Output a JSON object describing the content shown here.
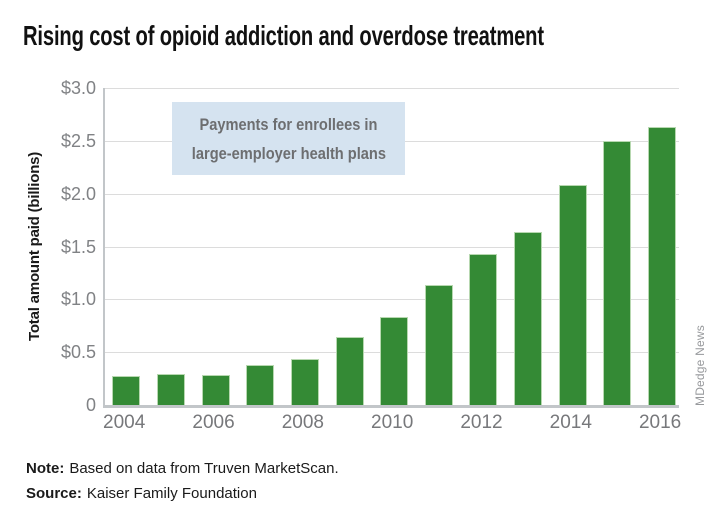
{
  "title": "Rising cost of opioid addiction and overdose treatment",
  "annotation": {
    "line1": "Payments for enrollees in",
    "line2": "large-employer health plans"
  },
  "watermark": "MDedge News",
  "note": {
    "label": "Note:",
    "text": "Based on data from Truven MarketScan."
  },
  "source": {
    "label": "Source:",
    "text": "Kaiser Family Foundation"
  },
  "colors": {
    "bar": "#348a35",
    "bar_edge": "#b7d8b0",
    "annotation_bg": "#d5e3f0",
    "annotation_text": "#6d6e70",
    "gridline": "#dcdcdc",
    "axis": "#c2c6c9",
    "tick_text": "#808285"
  },
  "chart_data": {
    "type": "bar",
    "title": "Rising cost of opioid addiction and overdose treatment",
    "categories": [
      "2004",
      "2005",
      "2006",
      "2007",
      "2008",
      "2009",
      "2010",
      "2011",
      "2012",
      "2013",
      "2014",
      "2015",
      "2016"
    ],
    "values": [
      0.27,
      0.29,
      0.28,
      0.38,
      0.44,
      0.64,
      0.83,
      1.14,
      1.43,
      1.64,
      2.08,
      2.5,
      2.63
    ],
    "xlabel": "",
    "ylabel": "Total amount paid (billions)",
    "ylim": [
      0,
      3.0
    ],
    "yticks": [
      3.0,
      2.5,
      2.0,
      1.5,
      1.0,
      0.5,
      0
    ],
    "ytick_labels": [
      "$3.0",
      "$2.5",
      "$2.0",
      "$1.5",
      "$1.0",
      "$0.5",
      "0"
    ],
    "xtick_indices": [
      0,
      2,
      4,
      6,
      8,
      10,
      12
    ],
    "xtick_labels": [
      "2004",
      "2006",
      "2008",
      "2010",
      "2012",
      "2014",
      "2016"
    ],
    "grid": true,
    "legend": false,
    "annotation": "Payments for enrollees in large-employer health plans"
  }
}
